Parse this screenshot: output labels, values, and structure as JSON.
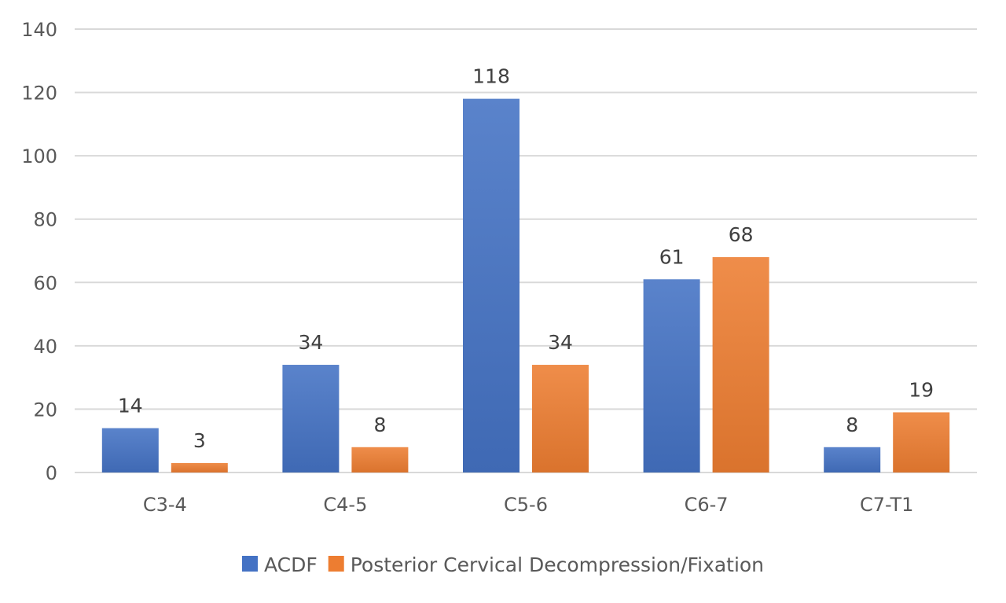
{
  "chart_data": {
    "type": "bar",
    "title": "",
    "xlabel": "",
    "ylabel": "",
    "categories": [
      "C3-4",
      "C4-5",
      "C5-6",
      "C6-7",
      "C7-T1"
    ],
    "series": [
      {
        "name": "ACDF",
        "values": [
          14,
          34,
          118,
          61,
          8
        ],
        "color": "#4472C4"
      },
      {
        "name": "Posterior Cervical Decompression/Fixation",
        "values": [
          3,
          8,
          34,
          68,
          19
        ],
        "color": "#ED7D31"
      }
    ],
    "ylim": [
      0,
      140
    ],
    "yticks": [
      0,
      20,
      40,
      60,
      80,
      100,
      120,
      140
    ],
    "grid": true,
    "legend_position": "bottom",
    "data_labels": true
  }
}
